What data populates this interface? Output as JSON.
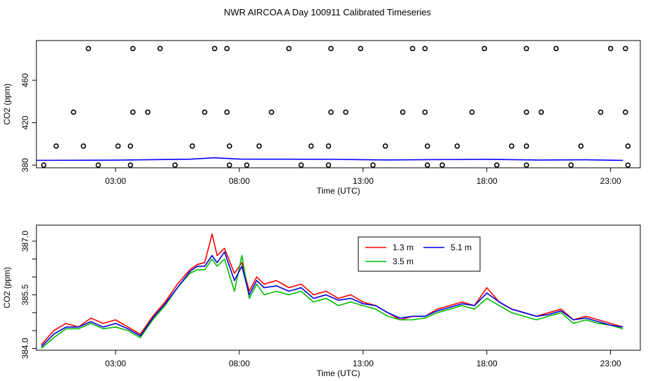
{
  "title": "NWR AIRCOA A  Day 100911  Calibrated Timeseries",
  "chart_data": [
    {
      "type": "scatter",
      "title": "NWR AIRCOA A  Day 100911  Calibrated Timeseries",
      "xlabel": "Time (UTC)",
      "ylabel": "CO2 (ppm)",
      "xlim": [
        -0.2,
        24.2
      ],
      "ylim": [
        377.5,
        497.5
      ],
      "xticks": [
        {
          "x": 3,
          "label": "03:00"
        },
        {
          "x": 8,
          "label": "08:00"
        },
        {
          "x": 13,
          "label": "13:00"
        },
        {
          "x": 18,
          "label": "18:00"
        },
        {
          "x": 23,
          "label": "23:00"
        }
      ],
      "yticks": [
        {
          "y": 380,
          "label": "380"
        },
        {
          "y": 420,
          "label": "420"
        },
        {
          "y": 460,
          "label": "460"
        }
      ],
      "grid": false,
      "points": [
        [
          1.9,
          490
        ],
        [
          3.7,
          490
        ],
        [
          4.8,
          490
        ],
        [
          7.0,
          490
        ],
        [
          7.5,
          490
        ],
        [
          10.0,
          490
        ],
        [
          11.7,
          490
        ],
        [
          12.9,
          490
        ],
        [
          15.0,
          490
        ],
        [
          15.5,
          490
        ],
        [
          17.9,
          490
        ],
        [
          19.6,
          490
        ],
        [
          20.8,
          490
        ],
        [
          23.0,
          490
        ],
        [
          23.6,
          490
        ],
        [
          1.3,
          430
        ],
        [
          3.7,
          430
        ],
        [
          4.3,
          430
        ],
        [
          6.6,
          430
        ],
        [
          7.5,
          430
        ],
        [
          9.3,
          430
        ],
        [
          11.7,
          430
        ],
        [
          12.3,
          430
        ],
        [
          14.6,
          430
        ],
        [
          15.5,
          430
        ],
        [
          17.4,
          430
        ],
        [
          19.6,
          430
        ],
        [
          20.2,
          430
        ],
        [
          22.6,
          430
        ],
        [
          23.6,
          430
        ],
        [
          0.6,
          398
        ],
        [
          1.7,
          398
        ],
        [
          3.1,
          398
        ],
        [
          3.6,
          398
        ],
        [
          6.1,
          398
        ],
        [
          7.6,
          398
        ],
        [
          8.8,
          398
        ],
        [
          10.9,
          398
        ],
        [
          11.6,
          398
        ],
        [
          13.9,
          398
        ],
        [
          15.6,
          398
        ],
        [
          16.8,
          398
        ],
        [
          19.0,
          398
        ],
        [
          19.6,
          398
        ],
        [
          21.8,
          398
        ],
        [
          23.7,
          398
        ],
        [
          0.1,
          380
        ],
        [
          2.3,
          380
        ],
        [
          3.6,
          380
        ],
        [
          5.4,
          380
        ],
        [
          7.6,
          380
        ],
        [
          8.3,
          380
        ],
        [
          10.5,
          380
        ],
        [
          11.6,
          380
        ],
        [
          13.4,
          380
        ],
        [
          15.6,
          380
        ],
        [
          16.2,
          380
        ],
        [
          18.4,
          380
        ],
        [
          19.6,
          380
        ],
        [
          21.4,
          380
        ],
        [
          23.7,
          380
        ]
      ],
      "series": [
        {
          "name": "",
          "color": "#0000ff",
          "x": [
            -0.5,
            3,
            6,
            7,
            8,
            10,
            12,
            14,
            16,
            18,
            20,
            22,
            23.5
          ],
          "y": [
            384.5,
            384.7,
            385.6,
            386.9,
            385.7,
            385.6,
            385.4,
            384.9,
            385.2,
            385.5,
            384.8,
            385.0,
            384.5
          ]
        }
      ]
    },
    {
      "type": "line",
      "title": "",
      "xlabel": "Time (UTC)",
      "ylabel": "CO2 (ppm)",
      "xlim": [
        -0.2,
        24.2
      ],
      "ylim": [
        383.95,
        387.45
      ],
      "xticks": [
        {
          "x": 3,
          "label": "03:00"
        },
        {
          "x": 8,
          "label": "08:00"
        },
        {
          "x": 13,
          "label": "13:00"
        },
        {
          "x": 18,
          "label": "18:00"
        },
        {
          "x": 23,
          "label": "23:00"
        }
      ],
      "yticks": [
        {
          "y": 384.0,
          "label": "384.0"
        },
        {
          "y": 384.5,
          "label": ""
        },
        {
          "y": 385.0,
          "label": ""
        },
        {
          "y": 385.5,
          "label": "385.5"
        },
        {
          "y": 386.0,
          "label": ""
        },
        {
          "y": 386.5,
          "label": ""
        },
        {
          "y": 387.0,
          "label": "387.0"
        }
      ],
      "grid": false,
      "legend_position": "top-center",
      "series": [
        {
          "name": "1.3 m",
          "color": "#ff0000",
          "x": [
            0,
            0.5,
            1,
            1.5,
            2,
            2.5,
            3,
            3.5,
            4,
            4.5,
            5,
            5.5,
            6,
            6.3,
            6.6,
            6.9,
            7.1,
            7.4,
            7.8,
            8.1,
            8.4,
            8.7,
            9,
            9.5,
            10,
            10.5,
            11,
            11.5,
            12,
            12.5,
            13,
            13.5,
            14,
            14.5,
            15,
            15.5,
            16,
            16.5,
            17,
            17.5,
            18,
            18.5,
            19,
            19.5,
            20,
            20.5,
            21,
            21.5,
            22,
            22.5,
            23,
            23.5
          ],
          "y": [
            384.1,
            384.5,
            384.7,
            384.6,
            384.85,
            384.7,
            384.8,
            384.6,
            384.4,
            384.9,
            385.3,
            385.8,
            386.2,
            386.35,
            386.4,
            387.2,
            386.6,
            386.8,
            386.1,
            386.4,
            385.6,
            386.0,
            385.8,
            385.9,
            385.7,
            385.8,
            385.5,
            385.6,
            385.4,
            385.5,
            385.3,
            385.2,
            385.0,
            384.8,
            384.9,
            384.9,
            385.1,
            385.2,
            385.3,
            385.2,
            385.7,
            385.3,
            385.1,
            385.0,
            384.9,
            385.0,
            385.1,
            384.8,
            384.9,
            384.8,
            384.7,
            384.6
          ]
        },
        {
          "name": "3.5 m",
          "color": "#00bb00",
          "x": [
            0,
            0.5,
            1,
            1.5,
            2,
            2.5,
            3,
            3.5,
            4,
            4.5,
            5,
            5.5,
            6,
            6.3,
            6.6,
            6.9,
            7.1,
            7.4,
            7.8,
            8.1,
            8.4,
            8.7,
            9,
            9.5,
            10,
            10.5,
            11,
            11.5,
            12,
            12.5,
            13,
            13.5,
            14,
            14.5,
            15,
            15.5,
            16,
            16.5,
            17,
            17.5,
            18,
            18.5,
            19,
            19.5,
            20,
            20.5,
            21,
            21.5,
            22,
            22.5,
            23,
            23.5
          ],
          "y": [
            384.0,
            384.3,
            384.55,
            384.55,
            384.7,
            384.55,
            384.6,
            384.5,
            384.3,
            384.8,
            385.2,
            385.7,
            386.1,
            386.2,
            386.2,
            386.5,
            386.3,
            386.5,
            385.6,
            386.6,
            385.4,
            385.8,
            385.5,
            385.6,
            385.5,
            385.6,
            385.3,
            385.4,
            385.2,
            385.3,
            385.2,
            385.1,
            384.9,
            384.8,
            384.8,
            384.85,
            385.0,
            385.1,
            385.2,
            385.1,
            385.4,
            385.2,
            385.0,
            384.9,
            384.8,
            384.9,
            385.0,
            384.7,
            384.8,
            384.7,
            384.65,
            384.55
          ]
        },
        {
          "name": "5.1 m",
          "color": "#0000dd",
          "x": [
            0,
            0.5,
            1,
            1.5,
            2,
            2.5,
            3,
            3.5,
            4,
            4.5,
            5,
            5.5,
            6,
            6.3,
            6.6,
            6.9,
            7.1,
            7.4,
            7.8,
            8.1,
            8.4,
            8.7,
            9,
            9.5,
            10,
            10.5,
            11,
            11.5,
            12,
            12.5,
            13,
            13.5,
            14,
            14.5,
            15,
            15.5,
            16,
            16.5,
            17,
            17.5,
            18,
            18.5,
            19,
            19.5,
            20,
            20.5,
            21,
            21.5,
            22,
            22.5,
            23,
            23.5
          ],
          "y": [
            384.05,
            384.4,
            384.6,
            384.6,
            384.75,
            384.6,
            384.7,
            384.55,
            384.35,
            384.85,
            385.25,
            385.7,
            386.15,
            386.3,
            386.3,
            386.6,
            386.4,
            386.7,
            385.9,
            386.3,
            385.5,
            385.9,
            385.7,
            385.75,
            385.6,
            385.7,
            385.4,
            385.5,
            385.35,
            385.4,
            385.25,
            385.2,
            385.0,
            384.85,
            384.9,
            384.9,
            385.05,
            385.15,
            385.25,
            385.2,
            385.55,
            385.3,
            385.1,
            385.0,
            384.9,
            384.95,
            385.05,
            384.8,
            384.85,
            384.75,
            384.65,
            384.6
          ]
        }
      ]
    }
  ]
}
